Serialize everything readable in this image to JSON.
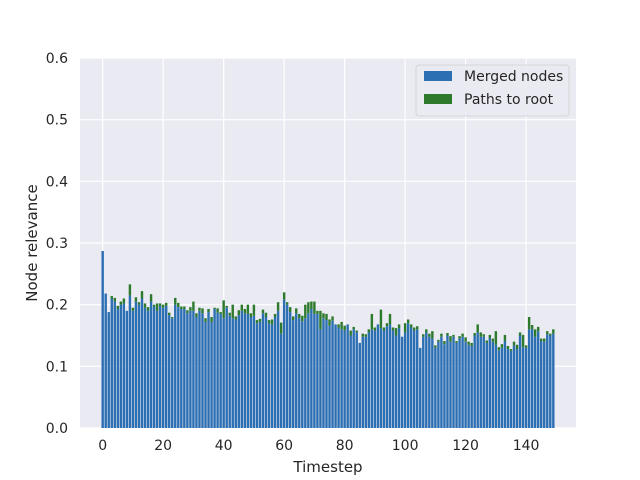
{
  "chart_data": {
    "type": "bar",
    "stacked": true,
    "xlabel": "Timestep",
    "ylabel": "Node relevance",
    "xlim": [
      -7.5,
      156.5
    ],
    "ylim": [
      0,
      0.6
    ],
    "xticks": [
      0,
      20,
      40,
      60,
      80,
      100,
      120,
      140
    ],
    "yticks": [
      0.0,
      0.1,
      0.2,
      0.3,
      0.4,
      0.5,
      0.6
    ],
    "grid": true,
    "legend": "top-right",
    "colors": {
      "background": "#eaeaf2",
      "grid": "#ffffff",
      "merged": "#2c6fb3",
      "paths": "#2d7a2d"
    },
    "x": [
      0,
      1,
      2,
      3,
      4,
      5,
      6,
      7,
      8,
      9,
      10,
      11,
      12,
      13,
      14,
      15,
      16,
      17,
      18,
      19,
      20,
      21,
      22,
      23,
      24,
      25,
      26,
      27,
      28,
      29,
      30,
      31,
      32,
      33,
      34,
      35,
      36,
      37,
      38,
      39,
      40,
      41,
      42,
      43,
      44,
      45,
      46,
      47,
      48,
      49,
      50,
      51,
      52,
      53,
      54,
      55,
      56,
      57,
      58,
      59,
      60,
      61,
      62,
      63,
      64,
      65,
      66,
      67,
      68,
      69,
      70,
      71,
      72,
      73,
      74,
      75,
      76,
      77,
      78,
      79,
      80,
      81,
      82,
      83,
      84,
      85,
      86,
      87,
      88,
      89,
      90,
      91,
      92,
      93,
      94,
      95,
      96,
      97,
      98,
      99,
      100,
      101,
      102,
      103,
      104,
      105,
      106,
      107,
      108,
      109,
      110,
      111,
      112,
      113,
      114,
      115,
      116,
      117,
      118,
      119,
      120,
      121,
      122,
      123,
      124,
      125,
      126,
      127,
      128,
      129,
      130,
      131,
      132,
      133,
      134,
      135,
      136,
      137,
      138,
      139,
      140,
      141,
      142,
      143,
      144,
      145,
      146,
      147,
      148,
      149
    ],
    "series": [
      {
        "name": "Merged nodes",
        "values": [
          0.287,
          0.218,
          0.188,
          0.21,
          0.205,
          0.193,
          0.2,
          0.202,
          0.19,
          0.215,
          0.19,
          0.205,
          0.2,
          0.21,
          0.195,
          0.19,
          0.205,
          0.197,
          0.19,
          0.198,
          0.195,
          0.198,
          0.183,
          0.178,
          0.2,
          0.196,
          0.193,
          0.193,
          0.186,
          0.19,
          0.19,
          0.18,
          0.19,
          0.186,
          0.172,
          0.188,
          0.172,
          0.193,
          0.187,
          0.185,
          0.178,
          0.195,
          0.182,
          0.178,
          0.176,
          0.183,
          0.19,
          0.186,
          0.185,
          0.18,
          0.182,
          0.17,
          0.172,
          0.186,
          0.18,
          0.17,
          0.168,
          0.18,
          0.19,
          0.153,
          0.208,
          0.2,
          0.188,
          0.175,
          0.186,
          0.178,
          0.173,
          0.178,
          0.186,
          0.193,
          0.185,
          0.185,
          0.16,
          0.178,
          0.175,
          0.166,
          0.174,
          0.168,
          0.163,
          0.16,
          0.158,
          0.168,
          0.15,
          0.16,
          0.155,
          0.138,
          0.148,
          0.148,
          0.155,
          0.16,
          0.158,
          0.168,
          0.162,
          0.158,
          0.165,
          0.168,
          0.158,
          0.15,
          0.162,
          0.148,
          0.155,
          0.17,
          0.163,
          0.158,
          0.16,
          0.13,
          0.148,
          0.155,
          0.148,
          0.145,
          0.13,
          0.14,
          0.148,
          0.136,
          0.15,
          0.14,
          0.148,
          0.138,
          0.145,
          0.148,
          0.14,
          0.135,
          0.133,
          0.15,
          0.155,
          0.148,
          0.148,
          0.138,
          0.146,
          0.14,
          0.135,
          0.126,
          0.13,
          0.141,
          0.128,
          0.125,
          0.134,
          0.128,
          0.15,
          0.131,
          0.13,
          0.16,
          0.16,
          0.148,
          0.157,
          0.141,
          0.14,
          0.152,
          0.15,
          0.153
        ]
      },
      {
        "name": "Paths to root",
        "values": [
          0.0,
          0.0,
          0.0,
          0.004,
          0.006,
          0.005,
          0.005,
          0.008,
          0.0,
          0.018,
          0.005,
          0.007,
          0.004,
          0.012,
          0.007,
          0.006,
          0.012,
          0.003,
          0.012,
          0.004,
          0.005,
          0.005,
          0.004,
          0.002,
          0.011,
          0.007,
          0.004,
          0.004,
          0.005,
          0.006,
          0.015,
          0.006,
          0.005,
          0.008,
          0.006,
          0.005,
          0.008,
          0.002,
          0.007,
          0.003,
          0.029,
          0.003,
          0.005,
          0.022,
          0.005,
          0.008,
          0.01,
          0.007,
          0.015,
          0.006,
          0.018,
          0.005,
          0.005,
          0.006,
          0.007,
          0.005,
          0.008,
          0.005,
          0.014,
          0.018,
          0.012,
          0.004,
          0.008,
          0.006,
          0.008,
          0.007,
          0.009,
          0.022,
          0.018,
          0.012,
          0.02,
          0.005,
          0.03,
          0.008,
          0.01,
          0.01,
          0.007,
          0.0,
          0.005,
          0.012,
          0.008,
          0.0,
          0.008,
          0.004,
          0.003,
          0.0,
          0.005,
          0.004,
          0.005,
          0.025,
          0.005,
          0.0,
          0.03,
          0.005,
          0.005,
          0.017,
          0.005,
          0.012,
          0.006,
          0.0,
          0.015,
          0.006,
          0.005,
          0.005,
          0.005,
          0.0,
          0.004,
          0.005,
          0.005,
          0.012,
          0.004,
          0.003,
          0.005,
          0.005,
          0.004,
          0.009,
          0.003,
          0.003,
          0.004,
          0.005,
          0.007,
          0.005,
          0.005,
          0.004,
          0.013,
          0.007,
          0.004,
          0.004,
          0.005,
          0.005,
          0.022,
          0.005,
          0.006,
          0.01,
          0.005,
          0.003,
          0.006,
          0.007,
          0.005,
          0.02,
          0.004,
          0.02,
          0.007,
          0.012,
          0.007,
          0.004,
          0.005,
          0.005,
          0.003,
          0.007
        ]
      }
    ]
  }
}
